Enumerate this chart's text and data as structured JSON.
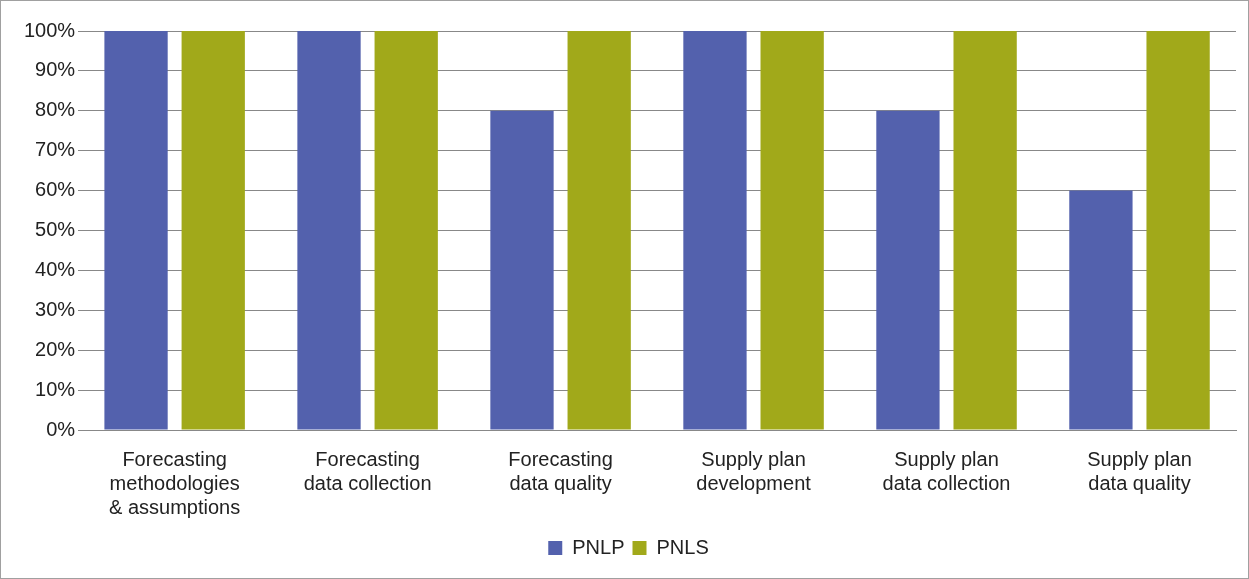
{
  "chart_data": {
    "type": "bar",
    "categories": [
      "Forecasting\nmethodologies\n& assumptions",
      "Forecasting\ndata collection",
      "Forecasting\ndata quality",
      "Supply plan\ndevelopment",
      "Supply plan\ndata collection",
      "Supply plan\ndata quality"
    ],
    "series": [
      {
        "name": "PNLP",
        "color": "#5361ad",
        "values": [
          100,
          100,
          80,
          100,
          80,
          60
        ]
      },
      {
        "name": "PNLS",
        "color": "#a1a91a",
        "values": [
          100,
          100,
          100,
          100,
          100,
          100
        ]
      }
    ],
    "ylim": [
      0,
      100
    ],
    "yticks": [
      {
        "value": 0,
        "label": "0%"
      },
      {
        "value": 10,
        "label": "10%"
      },
      {
        "value": 20,
        "label": "20%"
      },
      {
        "value": 30,
        "label": "30%"
      },
      {
        "value": 40,
        "label": "40%"
      },
      {
        "value": 50,
        "label": "50%"
      },
      {
        "value": 60,
        "label": "60%"
      },
      {
        "value": 70,
        "label": "70%"
      },
      {
        "value": 80,
        "label": "80%"
      },
      {
        "value": 90,
        "label": "90%"
      },
      {
        "value": 100,
        "label": "100%"
      }
    ],
    "grid": "y",
    "legend": "bottom"
  }
}
